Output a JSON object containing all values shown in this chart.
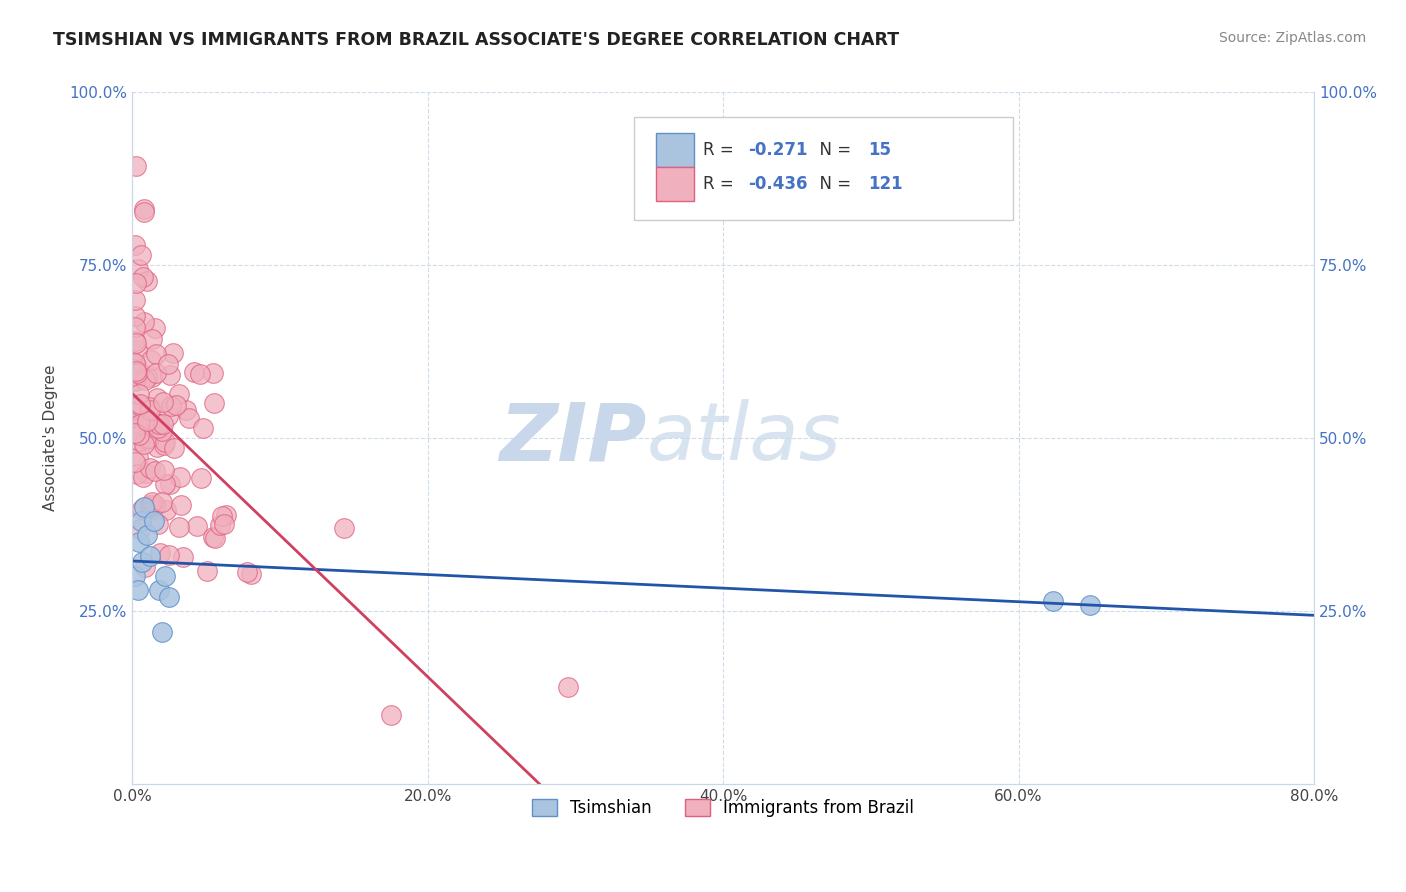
{
  "title": "TSIMSHIAN VS IMMIGRANTS FROM BRAZIL ASSOCIATE'S DEGREE CORRELATION CHART",
  "source_text": "Source: ZipAtlas.com",
  "ylabel": "Associate's Degree",
  "xlim": [
    0.0,
    0.8
  ],
  "ylim": [
    0.0,
    1.0
  ],
  "xtick_labels": [
    "0.0%",
    "20.0%",
    "40.0%",
    "60.0%",
    "80.0%"
  ],
  "xtick_vals": [
    0.0,
    0.2,
    0.4,
    0.6,
    0.8
  ],
  "ytick_labels": [
    "25.0%",
    "50.0%",
    "75.0%",
    "100.0%"
  ],
  "ytick_vals": [
    0.25,
    0.5,
    0.75,
    1.0
  ],
  "watermark_zip": "ZIP",
  "watermark_atlas": "atlas",
  "watermark_color": "#c8d8ea",
  "series1_color": "#aac4e0",
  "series1_edge": "#6090c8",
  "series2_color": "#f0b0be",
  "series2_edge": "#e06080",
  "series1_label": "Tsimshian",
  "series2_label": "Immigrants from Brazil",
  "line1_color": "#2255aa",
  "line2_color": "#d04060",
  "background_color": "#ffffff",
  "grid_color": "#c8d8e8",
  "title_color": "#222222",
  "axis_color": "#444444",
  "tick_color": "#4472c4",
  "legend_r1_val": "-0.271",
  "legend_n1_val": "15",
  "legend_r2_val": "-0.436",
  "legend_n2_val": "121"
}
